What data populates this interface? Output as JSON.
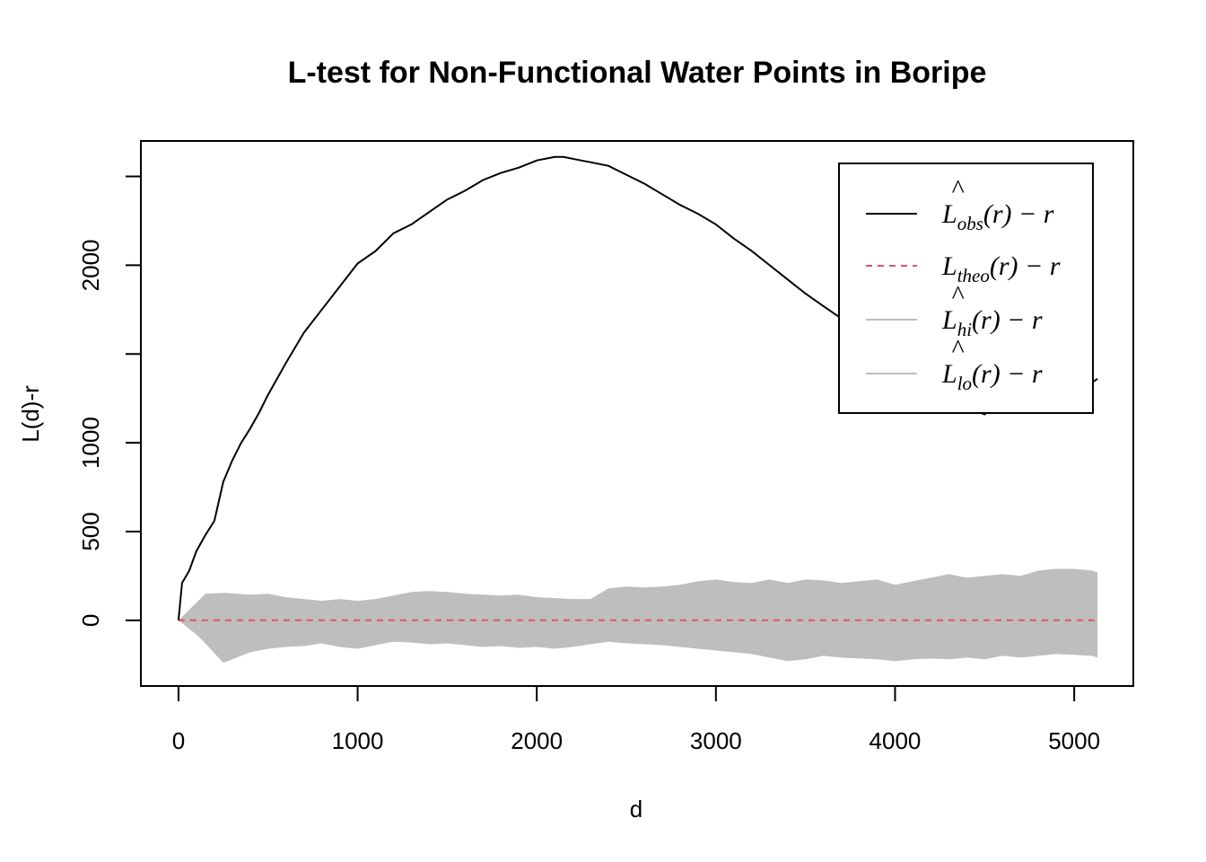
{
  "chart_data": {
    "type": "line",
    "title": "L-test for Non-Functional Water Points in Boripe",
    "xlabel": "d",
    "ylabel": "L(d)-r",
    "xlim": [
      -210,
      5330
    ],
    "ylim": [
      -370,
      2700
    ],
    "xticks": [
      0,
      1000,
      2000,
      3000,
      4000,
      5000
    ],
    "xtick_labels": [
      "0",
      "1000",
      "2000",
      "3000",
      "4000",
      "5000"
    ],
    "yticks": [
      0,
      500,
      1000,
      1500,
      2000,
      2500
    ],
    "ytick_labels": [
      "0",
      "500",
      "1000",
      "",
      "2000",
      ""
    ],
    "grid": false,
    "legend_position": "top-right",
    "legend": [
      {
        "key": "obs",
        "base": "L",
        "hat": true,
        "sub": "obs",
        "tail": "(r) − r",
        "color": "#000000",
        "dash": "solid"
      },
      {
        "key": "theo",
        "base": "L",
        "hat": false,
        "sub": "theo",
        "tail": "(r) − r",
        "color": "#DF536B",
        "dash": "dashed"
      },
      {
        "key": "hi",
        "base": "L",
        "hat": true,
        "sub": "hi",
        "tail": "(r) − r",
        "color": "#BEBEBE",
        "dash": "solid"
      },
      {
        "key": "lo",
        "base": "L",
        "hat": true,
        "sub": "lo",
        "tail": "(r) − r",
        "color": "#BEBEBE",
        "dash": "solid"
      }
    ],
    "series": [
      {
        "name": "obs",
        "color": "#000000",
        "x": [
          0,
          20,
          60,
          100,
          150,
          200,
          250,
          300,
          350,
          400,
          450,
          500,
          600,
          700,
          800,
          900,
          1000,
          1100,
          1200,
          1300,
          1400,
          1500,
          1600,
          1700,
          1800,
          1900,
          2000,
          2100,
          2150,
          2200,
          2300,
          2400,
          2500,
          2600,
          2700,
          2800,
          2900,
          3000,
          3100,
          3200,
          3300,
          3400,
          3500,
          3600,
          3700,
          3800,
          3900,
          4000,
          4100,
          4200,
          4300,
          4400,
          4500,
          4600,
          4700,
          4800,
          4900,
          5000,
          5100,
          5130
        ],
        "y": [
          0,
          210,
          280,
          390,
          480,
          560,
          780,
          900,
          1000,
          1080,
          1170,
          1270,
          1450,
          1620,
          1750,
          1880,
          2010,
          2080,
          2180,
          2230,
          2300,
          2370,
          2420,
          2480,
          2520,
          2550,
          2590,
          2610,
          2610,
          2600,
          2580,
          2560,
          2510,
          2460,
          2400,
          2340,
          2290,
          2230,
          2150,
          2080,
          2000,
          1920,
          1840,
          1770,
          1700,
          1620,
          1540,
          1460,
          1390,
          1320,
          1250,
          1200,
          1160,
          1240,
          1255,
          1270,
          1290,
          1305,
          1340,
          1360
        ]
      },
      {
        "name": "theo",
        "color": "#DF536B",
        "x": [
          0,
          5130
        ],
        "y": [
          0,
          0
        ]
      }
    ],
    "envelope": {
      "color": "#BEBEBE",
      "x": [
        0,
        100,
        150,
        250,
        400,
        500,
        600,
        700,
        800,
        900,
        1000,
        1100,
        1200,
        1300,
        1400,
        1500,
        1600,
        1700,
        1800,
        1900,
        2000,
        2100,
        2200,
        2300,
        2400,
        2500,
        2600,
        2700,
        2800,
        2900,
        3000,
        3100,
        3200,
        3300,
        3400,
        3500,
        3600,
        3700,
        3800,
        3900,
        4000,
        4100,
        4200,
        4300,
        4400,
        4500,
        4600,
        4700,
        4800,
        4900,
        5000,
        5100,
        5130
      ],
      "hi": [
        0,
        100,
        150,
        155,
        145,
        150,
        130,
        120,
        110,
        120,
        110,
        120,
        140,
        160,
        165,
        160,
        150,
        145,
        140,
        145,
        130,
        125,
        120,
        120,
        180,
        190,
        185,
        190,
        200,
        220,
        230,
        215,
        210,
        230,
        210,
        230,
        225,
        210,
        220,
        230,
        200,
        220,
        240,
        260,
        240,
        250,
        260,
        250,
        280,
        290,
        290,
        280,
        270
      ],
      "lo": [
        0,
        -80,
        -130,
        -240,
        -180,
        -160,
        -150,
        -145,
        -130,
        -150,
        -160,
        -140,
        -120,
        -125,
        -135,
        -130,
        -140,
        -150,
        -145,
        -155,
        -150,
        -160,
        -150,
        -135,
        -120,
        -130,
        -135,
        -140,
        -150,
        -160,
        -170,
        -180,
        -190,
        -210,
        -230,
        -220,
        -200,
        -210,
        -215,
        -220,
        -230,
        -220,
        -215,
        -220,
        -210,
        -220,
        -200,
        -210,
        -200,
        -190,
        -195,
        -200,
        -210
      ]
    }
  }
}
